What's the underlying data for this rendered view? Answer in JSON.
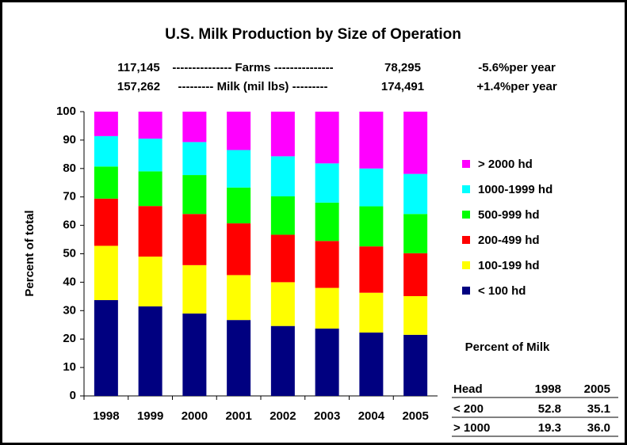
{
  "chart_data": {
    "type": "stacked_bar",
    "title": "U.S. Milk Production by Size of Operation",
    "annotations": [
      {
        "start": "117,145",
        "label": "--------------- Farms ---------------",
        "end": "78,295",
        "rate": "-5.6%per year"
      },
      {
        "start": "157,262",
        "label": "--------- Milk (mil lbs) ---------",
        "end": "174,491",
        "rate": "+1.4%per year"
      }
    ],
    "y_label": "Percent of total",
    "categories": [
      "1998",
      "1999",
      "2000",
      "2001",
      "2002",
      "2003",
      "2004",
      "2005"
    ],
    "series": [
      {
        "name": "< 100 hd",
        "color": "#000080",
        "values": [
          33.7,
          31.5,
          29.0,
          26.7,
          24.6,
          23.7,
          22.3,
          21.5
        ]
      },
      {
        "name": "100-199 hd",
        "color": "#ffff00",
        "values": [
          19.1,
          17.5,
          17.0,
          15.8,
          15.4,
          14.3,
          14.0,
          13.6
        ]
      },
      {
        "name": "200-499 hd",
        "color": "#ff0000",
        "values": [
          16.6,
          17.8,
          18.0,
          18.2,
          16.7,
          16.5,
          16.3,
          15.1
        ]
      },
      {
        "name": "500-999 hd",
        "color": "#00ff00",
        "values": [
          11.3,
          12.2,
          13.7,
          12.6,
          13.5,
          13.5,
          14.1,
          13.8
        ]
      },
      {
        "name": "1000-1999 hd",
        "color": "#00ffff",
        "values": [
          10.7,
          11.5,
          11.6,
          13.2,
          14.1,
          13.8,
          13.3,
          14.1
        ]
      },
      {
        "name": "> 2000 hd",
        "color": "#ff00ff",
        "values": [
          8.6,
          9.5,
          10.7,
          13.5,
          15.7,
          18.2,
          20.0,
          21.9
        ]
      }
    ],
    "ylim": [
      0,
      100
    ],
    "yticks": [
      0,
      10,
      20,
      30,
      40,
      50,
      60,
      70,
      80,
      90,
      100
    ],
    "grid": false,
    "legend": "right"
  },
  "table": {
    "title": "Percent of Milk",
    "header": [
      "Head",
      "1998",
      "2005"
    ],
    "rows": [
      [
        "< 200",
        "52.8",
        "35.1"
      ],
      [
        "> 1000",
        "19.3",
        "36.0"
      ]
    ]
  }
}
